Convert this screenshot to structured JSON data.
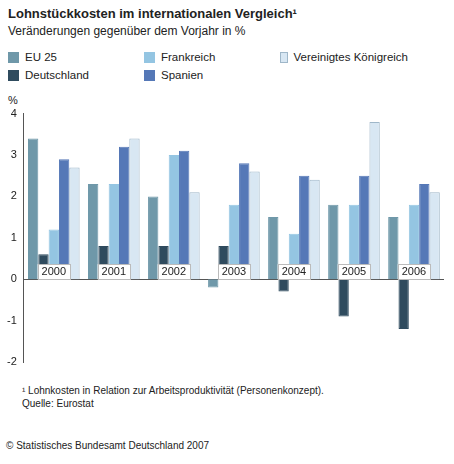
{
  "chart_data": {
    "type": "bar",
    "title": "Lohnstückkosten im internationalen Vergleich¹",
    "subtitle": "Veränderungen gegenüber dem Vorjahr in %",
    "y_label": "%",
    "categories": [
      "2000",
      "2001",
      "2002",
      "2003",
      "2004",
      "2005",
      "2006"
    ],
    "series": [
      {
        "name": "EU 25",
        "color": "#6f98a9",
        "values": [
          3.4,
          2.3,
          2.0,
          -0.2,
          1.5,
          1.8,
          1.5
        ]
      },
      {
        "name": "Deutschland",
        "color": "#2f4b5e",
        "values": [
          0.6,
          0.8,
          0.8,
          0.8,
          -0.3,
          -0.9,
          -1.2
        ]
      },
      {
        "name": "Frankreich",
        "color": "#94c5e2",
        "values": [
          1.2,
          2.3,
          3.0,
          1.8,
          1.1,
          1.8,
          1.8
        ]
      },
      {
        "name": "Spanien",
        "color": "#5578b7",
        "values": [
          2.9,
          3.2,
          3.1,
          2.8,
          2.5,
          2.5,
          2.3
        ]
      },
      {
        "name": "Vereinigtes Königreich",
        "color": "#d8e7f3",
        "values": [
          2.7,
          3.4,
          2.1,
          2.6,
          2.4,
          3.8,
          2.1
        ]
      }
    ],
    "ylim": [
      -2,
      4
    ],
    "yticks": [
      -2,
      -1,
      0,
      1,
      2,
      3,
      4
    ],
    "grid": false,
    "legend": "top",
    "footnotes": [
      "¹ Lohnkosten in Relation zur Arbeitsproduktivität (Personenkonzept).",
      "Quelle: Eurostat"
    ],
    "copyright": "© Statistisches Bundesamt Deutschland 2007"
  }
}
